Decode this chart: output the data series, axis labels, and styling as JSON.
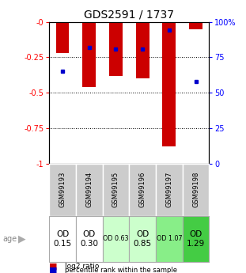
{
  "title": "GDS2591 / 1737",
  "samples": [
    "GSM99193",
    "GSM99194",
    "GSM99195",
    "GSM99196",
    "GSM99197",
    "GSM99198"
  ],
  "log2_ratios": [
    -0.22,
    -0.46,
    -0.38,
    -0.4,
    -0.88,
    -0.05
  ],
  "percentile_ranks": [
    0.35,
    0.18,
    0.19,
    0.19,
    0.06,
    0.42
  ],
  "ylim_left": [
    -1,
    0
  ],
  "ylim_right": [
    0,
    100
  ],
  "yticks_left": [
    0,
    -0.25,
    -0.5,
    -0.75,
    -1
  ],
  "yticks_right": [
    0,
    25,
    50,
    75,
    100
  ],
  "ytick_labels_left": [
    "-0",
    "-0.25",
    "-0.5",
    "-0.75",
    "-1"
  ],
  "ytick_labels_right": [
    "0",
    "25",
    "50",
    "75",
    "100%"
  ],
  "bar_color": "#cc0000",
  "marker_color": "#0000cc",
  "age_labels": [
    "OD\n0.15",
    "OD\n0.30",
    "OD 0.63",
    "OD\n0.85",
    "OD 1.07",
    "OD\n1.29"
  ],
  "age_bg_colors": [
    "#ffffff",
    "#ffffff",
    "#ccffcc",
    "#ccffcc",
    "#88ee88",
    "#44cc44"
  ],
  "age_fontsize_large": [
    true,
    true,
    false,
    true,
    false,
    true
  ],
  "sample_bg_color": "#cccccc",
  "bar_width": 0.5
}
